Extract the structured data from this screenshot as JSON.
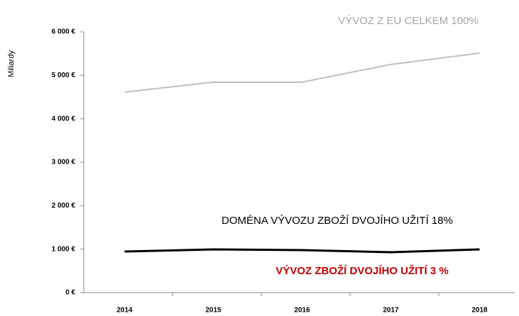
{
  "chart_data": {
    "type": "line",
    "y_label": "Miliardy",
    "categories": [
      "2014",
      "2015",
      "2016",
      "2017",
      "2018"
    ],
    "series": [
      {
        "color": "#c0c0c0",
        "values": [
          4614,
          4843,
          4843,
          5250,
          5511
        ]
      },
      {
        "color": "#000000",
        "values": [
          946,
          995,
          978,
          929,
          995
        ]
      }
    ],
    "annotations": [
      {
        "text": "VÝVOZ Z EU CELKEM   100%",
        "color": "#a6a6a6"
      },
      {
        "text": "DOMÉNA VÝVOZU ZBOŽÍ DVOJÍHO UŽITÍ  18%",
        "color": "#000000"
      },
      {
        "text": "VÝVOZ ZBOŽÍ DVOJÍHO UŽITÍ  3 %",
        "color": "#c00000"
      }
    ],
    "ylim": [
      0,
      6000
    ],
    "yticks": [
      {
        "value": 0,
        "label": "0 €"
      },
      {
        "value": 1000,
        "label": "1 000 €"
      },
      {
        "value": 2000,
        "label": "2 000 €"
      },
      {
        "value": 3000,
        "label": "3 000 €"
      },
      {
        "value": 4000,
        "label": "4 000 €"
      },
      {
        "value": 5000,
        "label": "5 000 €"
      },
      {
        "value": 6000,
        "label": "6 000 €"
      }
    ]
  }
}
